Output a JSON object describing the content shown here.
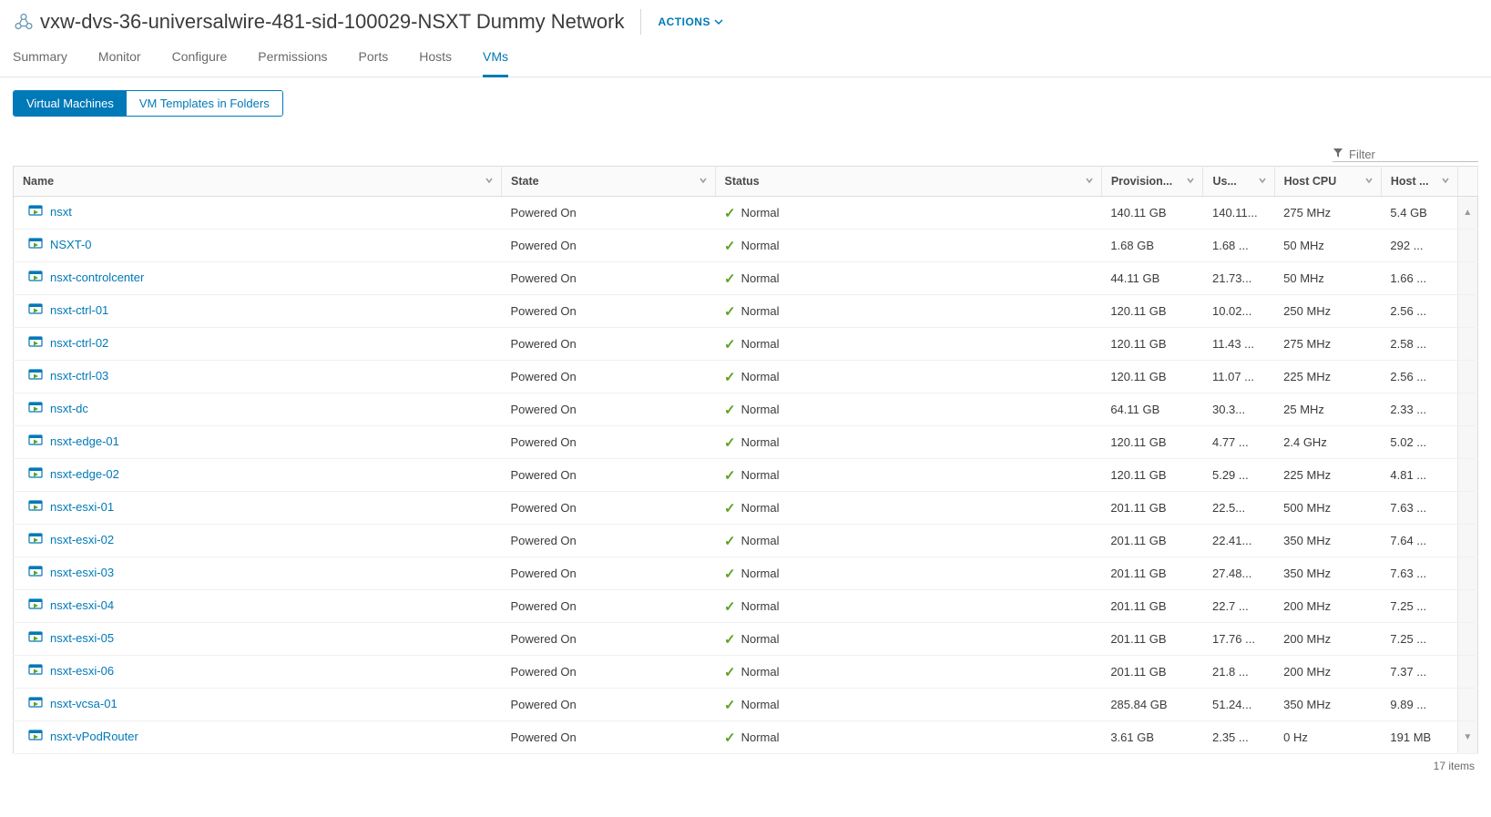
{
  "header": {
    "title": "vxw-dvs-36-universalwire-481-sid-100029-NSXT Dummy Network",
    "actions_label": "ACTIONS"
  },
  "tabs": [
    {
      "label": "Summary",
      "active": false
    },
    {
      "label": "Monitor",
      "active": false
    },
    {
      "label": "Configure",
      "active": false
    },
    {
      "label": "Permissions",
      "active": false
    },
    {
      "label": "Ports",
      "active": false
    },
    {
      "label": "Hosts",
      "active": false
    },
    {
      "label": "VMs",
      "active": true
    }
  ],
  "subtabs": [
    {
      "label": "Virtual Machines",
      "active": true
    },
    {
      "label": "VM Templates in Folders",
      "active": false
    }
  ],
  "filter": {
    "placeholder": "Filter"
  },
  "columns": {
    "name": "Name",
    "state": "State",
    "status": "Status",
    "provisioned": "Provision...",
    "used": "Us...",
    "hostcpu": "Host CPU",
    "hostmem": "Host ..."
  },
  "rows": [
    {
      "name": "nsxt",
      "state": "Powered On",
      "status": "Normal",
      "prov": "140.11 GB",
      "used": "140.11...",
      "cpu": "275 MHz",
      "mem": "5.4 GB"
    },
    {
      "name": "NSXT-0",
      "state": "Powered On",
      "status": "Normal",
      "prov": "1.68 GB",
      "used": "1.68 ...",
      "cpu": "50 MHz",
      "mem": "292 ..."
    },
    {
      "name": "nsxt-controlcenter",
      "state": "Powered On",
      "status": "Normal",
      "prov": "44.11 GB",
      "used": "21.73...",
      "cpu": "50 MHz",
      "mem": "1.66 ..."
    },
    {
      "name": "nsxt-ctrl-01",
      "state": "Powered On",
      "status": "Normal",
      "prov": "120.11 GB",
      "used": "10.02...",
      "cpu": "250 MHz",
      "mem": "2.56 ..."
    },
    {
      "name": "nsxt-ctrl-02",
      "state": "Powered On",
      "status": "Normal",
      "prov": "120.11 GB",
      "used": "11.43 ...",
      "cpu": "275 MHz",
      "mem": "2.58 ..."
    },
    {
      "name": "nsxt-ctrl-03",
      "state": "Powered On",
      "status": "Normal",
      "prov": "120.11 GB",
      "used": "11.07 ...",
      "cpu": "225 MHz",
      "mem": "2.56 ..."
    },
    {
      "name": "nsxt-dc",
      "state": "Powered On",
      "status": "Normal",
      "prov": "64.11 GB",
      "used": "30.3...",
      "cpu": "25 MHz",
      "mem": "2.33 ..."
    },
    {
      "name": "nsxt-edge-01",
      "state": "Powered On",
      "status": "Normal",
      "prov": "120.11 GB",
      "used": "4.77 ...",
      "cpu": "2.4 GHz",
      "mem": "5.02 ..."
    },
    {
      "name": "nsxt-edge-02",
      "state": "Powered On",
      "status": "Normal",
      "prov": "120.11 GB",
      "used": "5.29 ...",
      "cpu": "225 MHz",
      "mem": "4.81 ..."
    },
    {
      "name": "nsxt-esxi-01",
      "state": "Powered On",
      "status": "Normal",
      "prov": "201.11 GB",
      "used": "22.5...",
      "cpu": "500 MHz",
      "mem": "7.63 ..."
    },
    {
      "name": "nsxt-esxi-02",
      "state": "Powered On",
      "status": "Normal",
      "prov": "201.11 GB",
      "used": "22.41...",
      "cpu": "350 MHz",
      "mem": "7.64 ..."
    },
    {
      "name": "nsxt-esxi-03",
      "state": "Powered On",
      "status": "Normal",
      "prov": "201.11 GB",
      "used": "27.48...",
      "cpu": "350 MHz",
      "mem": "7.63 ..."
    },
    {
      "name": "nsxt-esxi-04",
      "state": "Powered On",
      "status": "Normal",
      "prov": "201.11 GB",
      "used": "22.7 ...",
      "cpu": "200 MHz",
      "mem": "7.25 ..."
    },
    {
      "name": "nsxt-esxi-05",
      "state": "Powered On",
      "status": "Normal",
      "prov": "201.11 GB",
      "used": "17.76 ...",
      "cpu": "200 MHz",
      "mem": "7.25 ..."
    },
    {
      "name": "nsxt-esxi-06",
      "state": "Powered On",
      "status": "Normal",
      "prov": "201.11 GB",
      "used": "21.8 ...",
      "cpu": "200 MHz",
      "mem": "7.37 ..."
    },
    {
      "name": "nsxt-vcsa-01",
      "state": "Powered On",
      "status": "Normal",
      "prov": "285.84 GB",
      "used": "51.24...",
      "cpu": "350 MHz",
      "mem": "9.89 ..."
    },
    {
      "name": "nsxt-vPodRouter",
      "state": "Powered On",
      "status": "Normal",
      "prov": "3.61 GB",
      "used": "2.35 ...",
      "cpu": "0 Hz",
      "mem": "191 MB"
    }
  ],
  "footer": {
    "count_label": "17 items"
  },
  "colors": {
    "link": "#0079b8",
    "status_ok": "#5aa220",
    "border": "#dcdcdc",
    "text": "#3b3b3b"
  }
}
